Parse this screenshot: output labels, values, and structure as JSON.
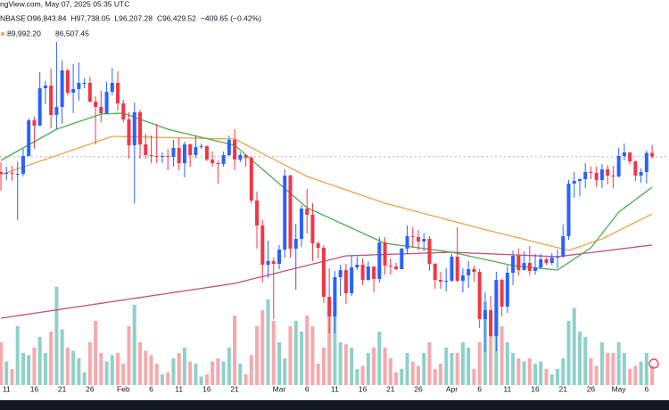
{
  "header": {
    "source": "ngView.com, May 07, 2025 05:35 UTC",
    "symbol": "NBASE",
    "ohlc": [
      "O96,843.84",
      "H97,738.05",
      "L96,207.28",
      "C96,429.52",
      "−409.65 (−0.42%)"
    ],
    "ma_values": [
      "89,992.20",
      "86,507.45"
    ]
  },
  "chart_data": {
    "type": "candlestick",
    "categories": [
      null,
      "11",
      null,
      null,
      null,
      null,
      "16",
      null,
      null,
      null,
      null,
      "21",
      null,
      null,
      null,
      null,
      "26",
      null,
      null,
      null,
      null,
      null,
      "Feb",
      null,
      null,
      null,
      null,
      "6",
      null,
      null,
      null,
      null,
      "11",
      null,
      null,
      null,
      null,
      "16",
      null,
      null,
      null,
      null,
      "21",
      null,
      null,
      null,
      null,
      null,
      null,
      null,
      "Mar",
      null,
      null,
      null,
      null,
      "6",
      null,
      null,
      null,
      null,
      "11",
      null,
      null,
      null,
      null,
      "16",
      null,
      null,
      null,
      null,
      "21",
      null,
      null,
      null,
      null,
      "26",
      null,
      null,
      null,
      null,
      null,
      "Apr",
      null,
      null,
      null,
      null,
      "6",
      null,
      null,
      null,
      null,
      "11",
      null,
      null,
      null,
      null,
      "16",
      null,
      null,
      null,
      null,
      "21",
      null,
      null,
      null,
      null,
      "26",
      null,
      null,
      null,
      null,
      "May",
      null,
      null,
      null,
      null,
      "6",
      null
    ],
    "open": [
      94700,
      94500,
      94600,
      94500,
      94500,
      96500,
      100500,
      99900,
      104100,
      104400,
      101100,
      102000,
      106100,
      103600,
      104000,
      104700,
      104700,
      102600,
      102000,
      101300,
      103700,
      104700,
      102400,
      100600,
      97700,
      101400,
      97800,
      96600,
      96500,
      96400,
      96500,
      96400,
      97400,
      95700,
      97800,
      96600,
      97500,
      97600,
      96100,
      95700,
      95600,
      96600,
      98300,
      96100,
      96600,
      96300,
      91500,
      88700,
      84300,
      84700,
      84400,
      86000,
      94300,
      86100,
      87200,
      90600,
      89900,
      86700,
      86200,
      80700,
      78500,
      82900,
      83700,
      81100,
      84000,
      84300,
      82600,
      84100,
      82700,
      86800,
      84200,
      84100,
      83800,
      86100,
      87500,
      87400,
      86900,
      87200,
      84400,
      82600,
      82400,
      82500,
      85200,
      82500,
      83100,
      83800,
      83500,
      78200,
      79200,
      76300,
      82600,
      79600,
      83400,
      85300,
      83700,
      84500,
      83600,
      84000,
      84900,
      84500,
      85100,
      85200,
      87500,
      93400,
      93700,
      93900,
      94700,
      94600,
      93800,
      95000,
      94300,
      94200,
      96500,
      96900,
      95900,
      94300,
      94700,
      96840
    ],
    "high": [
      95800,
      95300,
      95400,
      95900,
      97300,
      100700,
      100900,
      105900,
      104900,
      106300,
      109300,
      107200,
      106300,
      106800,
      107000,
      105200,
      105400,
      103200,
      103800,
      104800,
      106400,
      106000,
      102800,
      101400,
      102500,
      101700,
      99000,
      98800,
      100100,
      96900,
      97300,
      98300,
      98500,
      98100,
      97900,
      98800,
      97900,
      97700,
      97000,
      96000,
      97000,
      98800,
      99500,
      96900,
      96700,
      96500,
      92500,
      89300,
      87000,
      85100,
      86500,
      95000,
      94400,
      88900,
      91000,
      92800,
      91200,
      86900,
      86500,
      83900,
      83600,
      84300,
      84400,
      85300,
      85200,
      85000,
      84700,
      84100,
      87400,
      87400,
      85000,
      84500,
      86200,
      88700,
      88500,
      88200,
      87800,
      87500,
      84500,
      83500,
      83900,
      85500,
      88500,
      83900,
      84700,
      84200,
      83800,
      81200,
      80800,
      83500,
      82700,
      84200,
      85900,
      86100,
      85800,
      86400,
      85500,
      85500,
      85100,
      85600,
      86000,
      88800,
      93800,
      94700,
      94000,
      95700,
      95300,
      95300,
      95600,
      95500,
      95400,
      97400,
      97900,
      96900,
      96000,
      95100,
      97100,
      97740
    ],
    "low": [
      92600,
      93800,
      93700,
      89300,
      94200,
      96500,
      97300,
      99900,
      102300,
      99600,
      99500,
      100100,
      103300,
      101300,
      102700,
      104100,
      102500,
      97800,
      100300,
      101200,
      103300,
      101600,
      100300,
      96200,
      91200,
      96200,
      96200,
      95700,
      95700,
      95700,
      94900,
      95300,
      94900,
      94100,
      95300,
      96300,
      97300,
      95900,
      95300,
      93400,
      95300,
      96500,
      94900,
      95800,
      95300,
      91200,
      86100,
      82300,
      82800,
      78200,
      83800,
      85100,
      85100,
      81500,
      86300,
      87800,
      84700,
      85000,
      80000,
      76600,
      76600,
      80800,
      79900,
      80800,
      83700,
      82000,
      82500,
      81200,
      82300,
      83200,
      83200,
      83700,
      83800,
      85500,
      86300,
      85900,
      85800,
      83600,
      81600,
      81600,
      81300,
      82400,
      82300,
      81200,
      81700,
      82400,
      77200,
      74500,
      76200,
      74600,
      78500,
      78900,
      82000,
      83100,
      83700,
      83100,
      83200,
      83800,
      84300,
      84300,
      83900,
      85100,
      87100,
      91800,
      92000,
      92900,
      93900,
      93000,
      92900,
      93300,
      92900,
      94100,
      96000,
      95600,
      93700,
      93500,
      93400,
      96210
    ],
    "close": [
      94500,
      94600,
      94500,
      94500,
      96500,
      100500,
      99900,
      104100,
      104400,
      101100,
      102000,
      106100,
      103600,
      104000,
      104700,
      104700,
      102600,
      102000,
      101300,
      103700,
      104700,
      102400,
      100600,
      97700,
      101400,
      97800,
      96600,
      96500,
      96400,
      96500,
      96400,
      97400,
      95700,
      97800,
      96600,
      97500,
      97600,
      96100,
      95700,
      95600,
      96600,
      98300,
      96100,
      96600,
      96300,
      91500,
      88700,
      84300,
      84700,
      84400,
      86000,
      94300,
      86100,
      87200,
      90600,
      89900,
      86700,
      86200,
      80700,
      78500,
      82900,
      83700,
      81100,
      84000,
      84300,
      82600,
      84100,
      82700,
      86800,
      84200,
      84100,
      83800,
      86100,
      87500,
      87400,
      86900,
      87200,
      84400,
      82600,
      82400,
      82500,
      85200,
      82500,
      83100,
      83800,
      83500,
      78200,
      79200,
      76300,
      82600,
      79600,
      83400,
      85300,
      83700,
      84500,
      83600,
      84000,
      84900,
      84500,
      85100,
      85200,
      87500,
      93400,
      93700,
      93900,
      94700,
      94600,
      93800,
      95000,
      94300,
      94200,
      96500,
      96900,
      95900,
      94300,
      94700,
      96840,
      96430
    ],
    "volume": [
      40,
      22,
      15,
      55,
      30,
      28,
      35,
      45,
      30,
      50,
      92,
      52,
      35,
      32,
      25,
      12,
      40,
      60,
      30,
      22,
      28,
      30,
      20,
      55,
      75,
      40,
      32,
      28,
      20,
      10,
      12,
      25,
      30,
      35,
      22,
      20,
      8,
      10,
      22,
      25,
      22,
      35,
      65,
      20,
      10,
      28,
      55,
      70,
      80,
      60,
      40,
      25,
      55,
      60,
      50,
      65,
      55,
      20,
      35,
      70,
      68,
      40,
      38,
      35,
      15,
      18,
      30,
      35,
      50,
      35,
      25,
      12,
      15,
      30,
      22,
      18,
      30,
      40,
      15,
      20,
      35,
      30,
      30,
      40,
      35,
      15,
      40,
      78,
      60,
      78,
      55,
      40,
      30,
      25,
      22,
      25,
      20,
      22,
      15,
      10,
      15,
      25,
      60,
      72,
      50,
      45,
      25,
      18,
      40,
      30,
      30,
      40,
      30,
      15,
      18,
      22,
      30,
      18
    ],
    "series": [
      {
        "color": "#c2507f",
        "values": [
          78300,
          78390,
          78490,
          78580,
          78670,
          78760,
          78860,
          78950,
          79040,
          79140,
          79230,
          79320,
          79410,
          79510,
          79600,
          79690,
          79790,
          79880,
          79970,
          80060,
          80160,
          80250,
          80340,
          80440,
          80530,
          80620,
          80710,
          80810,
          80900,
          80990,
          81090,
          81180,
          81270,
          81360,
          81460,
          81550,
          81640,
          81740,
          81830,
          81920,
          82010,
          82110,
          82200,
          82360,
          82510,
          82670,
          82820,
          82980,
          83130,
          83290,
          83440,
          83600,
          83750,
          83910,
          84060,
          84220,
          84370,
          84530,
          84680,
          84840,
          84990,
          85150,
          85300,
          85320,
          85340,
          85360,
          85380,
          85410,
          85430,
          85450,
          85470,
          85490,
          85510,
          85530,
          85550,
          85570,
          85600,
          85620,
          85640,
          85660,
          85680,
          85700,
          85670,
          85650,
          85620,
          85590,
          85570,
          85540,
          85520,
          85490,
          85460,
          85440,
          85410,
          85380,
          85360,
          85330,
          85310,
          85280,
          85250,
          85230,
          85200,
          85280,
          85350,
          85430,
          85510,
          85590,
          85660,
          85740,
          85820,
          85890,
          85970,
          86050,
          86130,
          86200,
          86280,
          86360,
          86430,
          86510
        ]
      },
      {
        "color": "#f0a24a",
        "values": [
          94400,
          94620,
          94830,
          95050,
          95260,
          95480,
          95690,
          95910,
          96120,
          96340,
          96550,
          96770,
          96980,
          97200,
          97410,
          97630,
          97840,
          98060,
          98270,
          98490,
          98700,
          98690,
          98670,
          98660,
          98650,
          98630,
          98620,
          98610,
          98590,
          98580,
          98560,
          98550,
          98540,
          98520,
          98510,
          98500,
          98480,
          98470,
          98450,
          98440,
          98430,
          98410,
          98400,
          98080,
          97750,
          97430,
          97110,
          96780,
          96460,
          96140,
          95820,
          95490,
          95170,
          94850,
          94520,
          94200,
          93990,
          93770,
          93560,
          93340,
          93130,
          92910,
          92700,
          92490,
          92270,
          92060,
          91840,
          91630,
          91410,
          91200,
          91040,
          90870,
          90710,
          90540,
          90380,
          90210,
          90050,
          89880,
          89720,
          89550,
          89390,
          89220,
          89060,
          88890,
          88730,
          88560,
          88400,
          88240,
          88090,
          87930,
          87780,
          87620,
          87460,
          87310,
          87150,
          86990,
          86840,
          86680,
          86530,
          86370,
          86210,
          86060,
          85900,
          86120,
          86330,
          86550,
          86770,
          86980,
          87200,
          87510,
          87820,
          88130,
          88440,
          88750,
          89060,
          89370,
          89680,
          89990
        ]
      },
      {
        "color": "#4caf50",
        "values": [
          96000,
          96350,
          96700,
          97050,
          97400,
          97750,
          98100,
          98450,
          98800,
          99150,
          99500,
          99710,
          99930,
          100140,
          100350,
          100560,
          100780,
          100990,
          101200,
          101230,
          101250,
          101280,
          101300,
          101080,
          100850,
          100630,
          100400,
          100180,
          99950,
          99730,
          99500,
          99350,
          99200,
          99050,
          98900,
          98750,
          98600,
          98450,
          98300,
          98150,
          98000,
          97850,
          97700,
          97160,
          96620,
          96080,
          95550,
          95010,
          94470,
          93930,
          93390,
          92850,
          92320,
          91780,
          91240,
          90700,
          90410,
          90130,
          89840,
          89560,
          89270,
          88990,
          88700,
          88410,
          88130,
          87840,
          87560,
          87270,
          86990,
          86700,
          86620,
          86530,
          86450,
          86370,
          86280,
          86200,
          86120,
          86030,
          85950,
          85870,
          85780,
          85700,
          85560,
          85430,
          85290,
          85150,
          85020,
          84880,
          84750,
          84610,
          84470,
          84340,
          84200,
          84140,
          84080,
          84010,
          83950,
          83890,
          83830,
          83760,
          83700,
          84120,
          84530,
          84950,
          85370,
          85780,
          86200,
          87000,
          87800,
          88600,
          89400,
          90200,
          90670,
          91130,
          91600,
          92070,
          92530,
          93000
        ]
      }
    ],
    "ylim": [
      68000,
      114000
    ],
    "y2lim": [
      0,
      100
    ],
    "up_color": "#2962ff",
    "down_color": "#f23645",
    "volume_up_color": "#8fd1c8",
    "volume_down_color": "#f6a9ad"
  }
}
